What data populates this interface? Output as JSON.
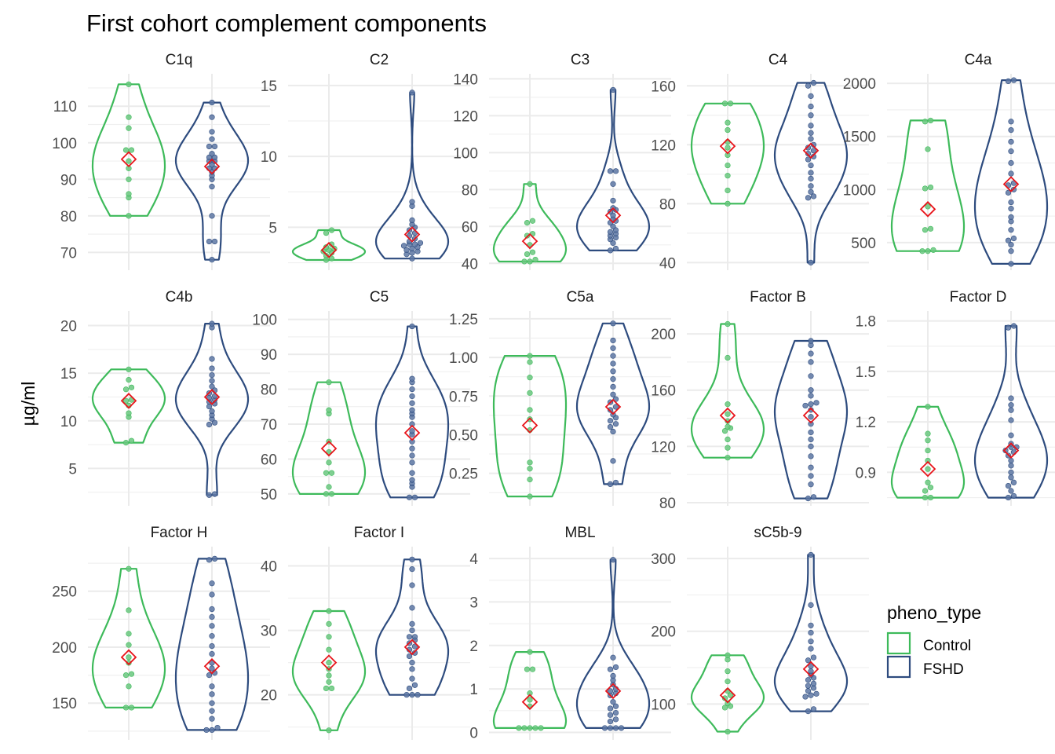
{
  "title": "First cohort complement components",
  "chart_data": {
    "type": "violin",
    "title": "First cohort complement components",
    "ylabel": "µg/ml",
    "xlabel": "",
    "grid": true,
    "legend": {
      "title": "pheno_type",
      "position": "right",
      "entries": [
        {
          "name": "Control",
          "color": "#3dba5a"
        },
        {
          "name": "FSHD",
          "color": "#2d4b7e"
        }
      ]
    },
    "mean_marker_color": "#e8141a",
    "groups": [
      "Control",
      "FSHD"
    ],
    "panels": [
      {
        "name": "C1q",
        "ylim": [
          66,
          118
        ],
        "ticks": [
          70,
          80,
          90,
          100,
          110
        ],
        "tick_labels": [
          "70",
          "80",
          "90",
          "100",
          "110"
        ],
        "series": [
          {
            "name": "Control",
            "mean": 95.5,
            "values": [
              116,
              107,
              104,
              98,
              98,
              95,
              93,
              90,
              86,
              85,
              80
            ]
          },
          {
            "name": "FSHD",
            "mean": 93.5,
            "values": [
              111,
              107,
              103,
              101,
              99,
              99,
              97,
              96,
              96,
              95,
              95,
              94,
              93,
              93,
              92,
              91,
              90,
              88,
              80,
              73,
              73,
              68
            ]
          }
        ]
      },
      {
        "name": "C2",
        "ylim": [
          2.2,
          15.6
        ],
        "ticks": [
          5,
          10,
          15
        ],
        "tick_labels": [
          "5",
          "10",
          "15"
        ],
        "series": [
          {
            "name": "Control",
            "mean": 3.4,
            "values": [
              4.8,
              4.6,
              3.8,
              3.6,
              3.5,
              3.4,
              3.3,
              3.2,
              3.0,
              2.8,
              2.7
            ]
          },
          {
            "name": "FSHD",
            "mean": 4.5,
            "values": [
              14.5,
              6.8,
              6.5,
              5.5,
              5.2,
              5.0,
              4.8,
              4.6,
              4.4,
              4.2,
              4.0,
              3.9,
              3.8,
              3.8,
              3.7,
              3.6,
              3.5,
              3.4,
              3.3,
              3.2,
              3.1,
              2.8
            ]
          }
        ]
      },
      {
        "name": "C3",
        "ylim": [
          38,
          141
        ],
        "ticks": [
          40,
          60,
          80,
          100,
          120,
          140
        ],
        "tick_labels": [
          "40",
          "60",
          "80",
          "100",
          "120",
          "140"
        ],
        "series": [
          {
            "name": "Control",
            "mean": 52,
            "values": [
              83,
              63,
              62,
              56,
              55,
              50,
              46,
              45,
              42,
              41,
              41
            ]
          },
          {
            "name": "FSHD",
            "mean": 66,
            "values": [
              134,
              90,
              90,
              83,
              74,
              70,
              69,
              68,
              66,
              64,
              63,
              62,
              60,
              58,
              57,
              56,
              55,
              54,
              53,
              51,
              48,
              47
            ]
          }
        ]
      },
      {
        "name": "C4",
        "ylim": [
          37,
          166
        ],
        "ticks": [
          40,
          80,
          120,
          160
        ],
        "tick_labels": [
          "40",
          "80",
          "120",
          "160"
        ],
        "series": [
          {
            "name": "Control",
            "mean": 119,
            "values": [
              148,
              148,
              135,
              130,
              122,
              118,
              113,
              106,
              99,
              89,
              80
            ]
          },
          {
            "name": "FSHD",
            "mean": 116,
            "values": [
              162,
              160,
              153,
              146,
              140,
              133,
              128,
              124,
              120,
              118,
              116,
              114,
              112,
              110,
              106,
              101,
              97,
              92,
              88,
              85,
              84,
              40
            ]
          }
        ]
      },
      {
        "name": "C4a",
        "ylim": [
          270,
          2060
        ],
        "ticks": [
          500,
          1000,
          1500,
          2000
        ],
        "tick_labels": [
          "500",
          "1000",
          "1500",
          "2000"
        ],
        "series": [
          {
            "name": "Control",
            "mean": 815,
            "values": [
              1650,
              1640,
              1380,
              1020,
              1010,
              840,
              630,
              620,
              430,
              420,
              420
            ]
          },
          {
            "name": "FSHD",
            "mean": 1050,
            "values": [
              2030,
              2020,
              1640,
              1560,
              1450,
              1360,
              1250,
              1150,
              1060,
              1040,
              1000,
              970,
              880,
              820,
              740,
              700,
              620,
              540,
              520,
              480,
              420,
              300
            ]
          }
        ]
      },
      {
        "name": "C4b",
        "ylim": [
          1.4,
          21.2
        ],
        "ticks": [
          5,
          10,
          15,
          20
        ],
        "tick_labels": [
          "5",
          "10",
          "15",
          "20"
        ],
        "series": [
          {
            "name": "Control",
            "mean": 12.1,
            "values": [
              15.4,
              14.3,
              13.5,
              13.3,
              12.2,
              12.1,
              11.6,
              10.8,
              10.4,
              7.9,
              7.7
            ]
          },
          {
            "name": "FSHD",
            "mean": 12.5,
            "values": [
              20.2,
              19.8,
              16.5,
              15.5,
              14.8,
              14.2,
              13.6,
              13.2,
              12.9,
              12.6,
              12.4,
              12.2,
              12.0,
              11.8,
              11.5,
              11.0,
              10.6,
              10.2,
              9.8,
              9.6,
              2.3,
              2.2
            ]
          }
        ]
      },
      {
        "name": "C5",
        "ylim": [
          47.5,
          101.5
        ],
        "ticks": [
          50,
          60,
          70,
          80,
          90,
          100
        ],
        "tick_labels": [
          "50",
          "60",
          "70",
          "80",
          "90",
          "100"
        ],
        "series": [
          {
            "name": "Control",
            "mean": 63,
            "values": [
              82,
              74,
              73,
              65,
              62,
              59,
              56,
              56,
              52,
              50,
              50
            ]
          },
          {
            "name": "FSHD",
            "mean": 67.5,
            "values": [
              98,
              83,
              82,
              80,
              78,
              76,
              74,
              73,
              72,
              70,
              68,
              67,
              65,
              63,
              61,
              59,
              56,
              54,
              53,
              52,
              49,
              49
            ]
          }
        ]
      },
      {
        "name": "C5a",
        "ylim": [
          0.06,
          1.28
        ],
        "ticks": [
          0.25,
          0.5,
          0.75,
          1.0,
          1.25
        ],
        "tick_labels": [
          "0.25",
          "0.50",
          "0.75",
          "1.00",
          "1.25"
        ],
        "series": [
          {
            "name": "Control",
            "mean": 0.56,
            "values": [
              1.01,
              0.97,
              0.87,
              0.77,
              0.66,
              0.6,
              0.53,
              0.32,
              0.28,
              0.21,
              0.1
            ]
          },
          {
            "name": "FSHD",
            "mean": 0.68,
            "values": [
              1.22,
              1.11,
              1.06,
              1.01,
              0.96,
              0.91,
              0.86,
              0.81,
              0.76,
              0.73,
              0.71,
              0.68,
              0.66,
              0.63,
              0.61,
              0.59,
              0.57,
              0.55,
              0.52,
              0.33,
              0.19,
              0.18
            ]
          }
        ]
      },
      {
        "name": "Factor B",
        "ylim": [
          80,
          214
        ],
        "ticks": [
          80,
          120,
          160,
          200
        ],
        "tick_labels": [
          "80",
          "120",
          "160",
          "200"
        ],
        "series": [
          {
            "name": "Control",
            "mean": 142,
            "values": [
              207,
              183,
              150,
              143,
              138,
              134,
              133,
              131,
              125,
              119,
              112
            ]
          },
          {
            "name": "FSHD",
            "mean": 142,
            "values": [
              195,
              192,
              186,
              180,
              170,
              160,
              156,
              151,
              150,
              149,
              146,
              141,
              136,
              130,
              125,
              120,
              113,
              105,
              99,
              93,
              84,
              83
            ]
          }
        ]
      },
      {
        "name": "Factor D",
        "ylim": [
          0.72,
          1.84
        ],
        "ticks": [
          0.9,
          1.2,
          1.5,
          1.8
        ],
        "tick_labels": [
          "0.9",
          "1.2",
          "1.5",
          "1.8"
        ],
        "series": [
          {
            "name": "Control",
            "mean": 0.92,
            "values": [
              1.29,
              1.13,
              1.09,
              1.03,
              0.97,
              0.92,
              0.84,
              0.81,
              0.79,
              0.75,
              0.75
            ]
          },
          {
            "name": "FSHD",
            "mean": 1.03,
            "values": [
              1.77,
              1.76,
              1.34,
              1.3,
              1.27,
              1.21,
              1.12,
              1.07,
              1.05,
              1.05,
              1.03,
              1.02,
              1.0,
              0.97,
              0.94,
              0.9,
              0.87,
              0.84,
              0.82,
              0.79,
              0.76,
              0.75
            ]
          }
        ]
      },
      {
        "name": "Factor H",
        "ylim": [
          120,
          287
        ],
        "ticks": [
          150,
          200,
          250
        ],
        "tick_labels": [
          "150",
          "200",
          "250"
        ],
        "series": [
          {
            "name": "Control",
            "mean": 191,
            "values": [
              270,
              233,
              212,
              202,
              191,
              186,
              176,
              175,
              165,
              146,
              146
            ]
          },
          {
            "name": "FSHD",
            "mean": 183,
            "values": [
              279,
              278,
              257,
              247,
              234,
              227,
              219,
              210,
              201,
              194,
              186,
              181,
              177,
              175,
              165,
              158,
              150,
              143,
              136,
              128,
              126,
              126
            ]
          }
        ]
      },
      {
        "name": "Factor I",
        "ylim": [
          13.5,
          42.5
        ],
        "ticks": [
          20,
          30,
          40
        ],
        "tick_labels": [
          "20",
          "30",
          "40"
        ],
        "series": [
          {
            "name": "Control",
            "mean": 25,
            "values": [
              33,
              31,
              29,
              27,
              25,
              24,
              23,
              22,
              21,
              21,
              14.5
            ]
          },
          {
            "name": "FSHD",
            "mean": 27.4,
            "values": [
              41,
              39.5,
              37,
              33.5,
              31,
              30,
              29,
              29,
              28.5,
              28,
              27.5,
              27,
              26.5,
              26,
              25,
              24,
              22.5,
              21.5,
              21,
              20,
              20,
              20
            ]
          }
        ]
      },
      {
        "name": "MBL",
        "ylim": [
          -0.1,
          4.2
        ],
        "ticks": [
          0,
          1,
          2,
          3,
          4
        ],
        "tick_labels": [
          "0",
          "1",
          "2",
          "3",
          "4"
        ],
        "series": [
          {
            "name": "Control",
            "mean": 0.7,
            "values": [
              1.85,
              1.45,
              1.45,
              0.9,
              0.75,
              0.6,
              0.1,
              0.1,
              0.1,
              0.1,
              0.1
            ]
          },
          {
            "name": "FSHD",
            "mean": 0.95,
            "values": [
              3.97,
              1.72,
              1.5,
              1.45,
              1.3,
              1.2,
              1.1,
              1.0,
              0.95,
              0.9,
              0.85,
              0.7,
              0.6,
              0.55,
              0.45,
              0.4,
              0.3,
              0.25,
              0.1,
              0.1,
              0.1,
              0.1
            ]
          }
        ]
      },
      {
        "name": "sC5b-9",
        "ylim": [
          55,
          312
        ],
        "ticks": [
          100,
          200,
          300
        ],
        "tick_labels": [
          "100",
          "200",
          "300"
        ],
        "series": [
          {
            "name": "Control",
            "mean": 112,
            "values": [
              167,
              161,
              145,
              131,
              118,
              112,
              108,
              101,
              97,
              95,
              62
            ]
          },
          {
            "name": "FSHD",
            "mean": 148,
            "values": [
              305,
              236,
              208,
              198,
              186,
              176,
              164,
              160,
              152,
              145,
              140,
              136,
              133,
              128,
              125,
              122,
              118,
              114,
              112,
              110,
              93,
              90
            ]
          }
        ]
      }
    ]
  }
}
